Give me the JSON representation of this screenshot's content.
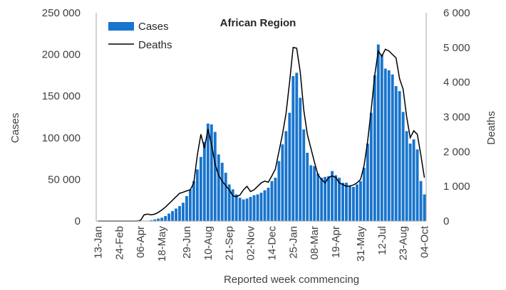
{
  "chart_data": {
    "type": "bar+line",
    "title": "African Region",
    "xlabel": "Reported week commencing",
    "ylabel_left": "Cases",
    "ylabel_right": "Deaths",
    "y_left_range": [
      0,
      250000
    ],
    "y_right_range": [
      0,
      6000
    ],
    "y_left_ticks": [
      "0",
      "50 000",
      "100 000",
      "150 000",
      "200 000",
      "250 000"
    ],
    "y_right_ticks": [
      "0",
      "1 000",
      "2 000",
      "3 000",
      "4 000",
      "5 000",
      "6 000"
    ],
    "x_tick_labels": [
      "13-Jan",
      "24-Feb",
      "06-Apr",
      "18-May",
      "29-Jun",
      "10-Aug",
      "21-Sep",
      "02-Nov",
      "14-Dec",
      "25-Jan",
      "08-Mar",
      "19-Apr",
      "31-May",
      "12-Jul",
      "23-Aug",
      "04-Oct"
    ],
    "grid": false,
    "legend_position": "top-left",
    "colors": {
      "cases": "#1874CD",
      "deaths": "#000000"
    },
    "series": [
      {
        "name": "Cases",
        "type": "bar",
        "axis": "left",
        "values": [
          0,
          0,
          0,
          0,
          0,
          0,
          0,
          0,
          0,
          0,
          0,
          0,
          0,
          100,
          300,
          1000,
          2000,
          3000,
          4000,
          6000,
          9000,
          12000,
          15000,
          18000,
          22000,
          30000,
          38000,
          48000,
          62000,
          77000,
          95000,
          117000,
          116000,
          107000,
          80000,
          70000,
          58000,
          44000,
          38000,
          32000,
          28000,
          26000,
          27000,
          29000,
          31000,
          32000,
          34000,
          37000,
          40000,
          48000,
          52000,
          72000,
          92000,
          108000,
          130000,
          174000,
          178000,
          148000,
          110000,
          82000,
          67000,
          66000,
          57000,
          52000,
          53000,
          54000,
          60000,
          55000,
          52000,
          46000,
          46000,
          42000,
          41000,
          44000,
          48000,
          64000,
          93000,
          130000,
          175000,
          212000,
          200000,
          183000,
          181000,
          176000,
          162000,
          156000,
          131000,
          108000,
          93000,
          98000,
          86000,
          48000,
          32000
        ]
      },
      {
        "name": "Deaths",
        "type": "line",
        "axis": "right",
        "values": [
          0,
          0,
          0,
          0,
          0,
          0,
          0,
          0,
          0,
          0,
          0,
          0,
          20,
          180,
          200,
          180,
          200,
          250,
          320,
          400,
          500,
          600,
          700,
          800,
          830,
          870,
          900,
          1100,
          1900,
          2500,
          2100,
          2650,
          2200,
          1650,
          1320,
          1150,
          1020,
          900,
          730,
          700,
          750,
          900,
          1000,
          850,
          900,
          1000,
          1100,
          1150,
          1120,
          1300,
          1500,
          2000,
          2500,
          3100,
          4000,
          5000,
          4980,
          4300,
          3200,
          2500,
          2100,
          1700,
          1330,
          1200,
          1100,
          1250,
          1300,
          1260,
          1100,
          1050,
          1000,
          1010,
          1040,
          1100,
          1200,
          1600,
          2300,
          3200,
          4200,
          4900,
          4750,
          4950,
          4900,
          4800,
          4700,
          4100,
          3800,
          3000,
          2400,
          2600,
          2500,
          1900,
          1250
        ]
      }
    ]
  }
}
